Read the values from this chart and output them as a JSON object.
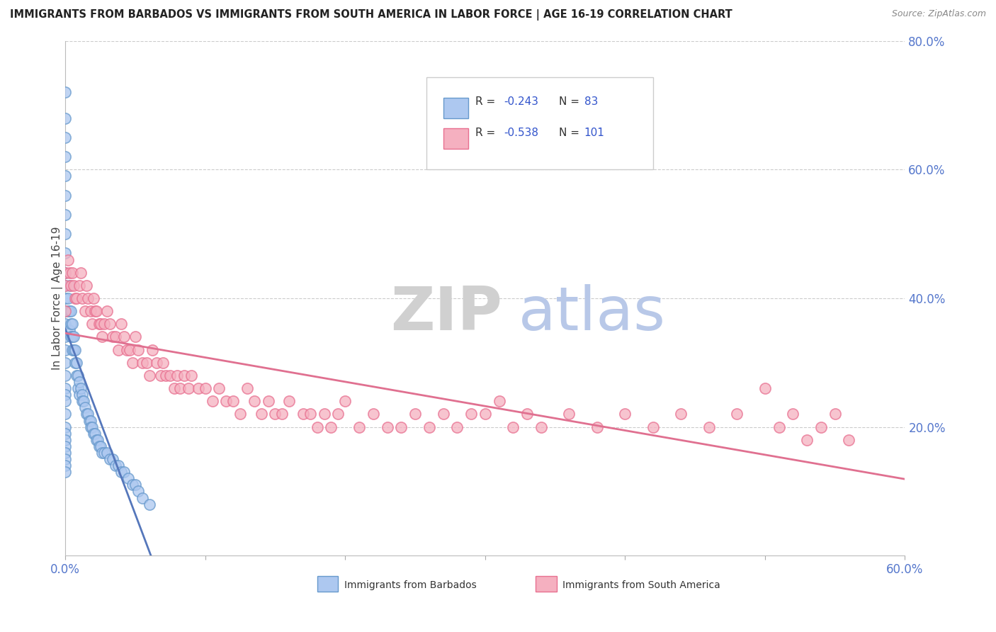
{
  "title": "IMMIGRANTS FROM BARBADOS VS IMMIGRANTS FROM SOUTH AMERICA IN LABOR FORCE | AGE 16-19 CORRELATION CHART",
  "source": "Source: ZipAtlas.com",
  "ylabel_label": "In Labor Force | Age 16-19",
  "legend_r1": "R = -0.243",
  "legend_n1": "N =  83",
  "legend_r2": "R = -0.538",
  "legend_n2": "N = 101",
  "color_barbados_fill": "#adc8f0",
  "color_barbados_edge": "#6699cc",
  "color_southam_fill": "#f5b0c0",
  "color_southam_edge": "#e87090",
  "color_blue_line": "#5577bb",
  "color_pink_line": "#e07090",
  "color_r_value": "#3355cc",
  "color_n_value": "#3355cc",
  "color_tick_label": "#5577cc",
  "xlim": [
    0.0,
    0.6
  ],
  "ylim": [
    0.0,
    0.8
  ],
  "barbados_x": [
    0.0,
    0.0,
    0.0,
    0.0,
    0.0,
    0.0,
    0.0,
    0.0,
    0.0,
    0.0,
    0.0,
    0.0,
    0.0,
    0.0,
    0.0,
    0.0,
    0.0,
    0.0,
    0.0,
    0.0,
    0.0,
    0.0,
    0.0,
    0.0,
    0.0,
    0.0,
    0.0,
    0.0,
    0.0,
    0.0,
    0.002,
    0.002,
    0.003,
    0.003,
    0.003,
    0.004,
    0.004,
    0.004,
    0.005,
    0.005,
    0.005,
    0.006,
    0.006,
    0.007,
    0.007,
    0.008,
    0.008,
    0.009,
    0.009,
    0.01,
    0.01,
    0.011,
    0.012,
    0.012,
    0.013,
    0.014,
    0.015,
    0.016,
    0.017,
    0.018,
    0.018,
    0.019,
    0.02,
    0.021,
    0.022,
    0.023,
    0.024,
    0.025,
    0.026,
    0.028,
    0.03,
    0.032,
    0.034,
    0.036,
    0.038,
    0.04,
    0.042,
    0.045,
    0.048,
    0.05,
    0.052,
    0.055,
    0.06
  ],
  "barbados_y": [
    0.72,
    0.68,
    0.65,
    0.62,
    0.59,
    0.56,
    0.53,
    0.5,
    0.47,
    0.44,
    0.42,
    0.4,
    0.38,
    0.36,
    0.34,
    0.32,
    0.3,
    0.28,
    0.26,
    0.25,
    0.24,
    0.22,
    0.2,
    0.19,
    0.18,
    0.17,
    0.16,
    0.15,
    0.14,
    0.13,
    0.4,
    0.38,
    0.42,
    0.38,
    0.35,
    0.38,
    0.36,
    0.34,
    0.36,
    0.34,
    0.32,
    0.34,
    0.32,
    0.32,
    0.3,
    0.3,
    0.28,
    0.28,
    0.26,
    0.27,
    0.25,
    0.26,
    0.25,
    0.24,
    0.24,
    0.23,
    0.22,
    0.22,
    0.21,
    0.21,
    0.2,
    0.2,
    0.19,
    0.19,
    0.18,
    0.18,
    0.17,
    0.17,
    0.16,
    0.16,
    0.16,
    0.15,
    0.15,
    0.14,
    0.14,
    0.13,
    0.13,
    0.12,
    0.11,
    0.11,
    0.1,
    0.09,
    0.08
  ],
  "southam_x": [
    0.0,
    0.0,
    0.0,
    0.002,
    0.003,
    0.004,
    0.005,
    0.006,
    0.007,
    0.008,
    0.01,
    0.011,
    0.012,
    0.014,
    0.015,
    0.016,
    0.018,
    0.019,
    0.02,
    0.021,
    0.022,
    0.024,
    0.025,
    0.026,
    0.028,
    0.03,
    0.032,
    0.034,
    0.036,
    0.038,
    0.04,
    0.042,
    0.044,
    0.046,
    0.048,
    0.05,
    0.052,
    0.055,
    0.058,
    0.06,
    0.062,
    0.065,
    0.068,
    0.07,
    0.072,
    0.075,
    0.078,
    0.08,
    0.082,
    0.085,
    0.088,
    0.09,
    0.095,
    0.1,
    0.105,
    0.11,
    0.115,
    0.12,
    0.125,
    0.13,
    0.135,
    0.14,
    0.145,
    0.15,
    0.155,
    0.16,
    0.17,
    0.175,
    0.18,
    0.185,
    0.19,
    0.195,
    0.2,
    0.21,
    0.22,
    0.23,
    0.24,
    0.25,
    0.26,
    0.27,
    0.28,
    0.29,
    0.3,
    0.31,
    0.32,
    0.33,
    0.34,
    0.36,
    0.38,
    0.4,
    0.42,
    0.44,
    0.46,
    0.48,
    0.5,
    0.51,
    0.52,
    0.53,
    0.54,
    0.55,
    0.56
  ],
  "southam_y": [
    0.44,
    0.42,
    0.38,
    0.46,
    0.44,
    0.42,
    0.44,
    0.42,
    0.4,
    0.4,
    0.42,
    0.44,
    0.4,
    0.38,
    0.42,
    0.4,
    0.38,
    0.36,
    0.4,
    0.38,
    0.38,
    0.36,
    0.36,
    0.34,
    0.36,
    0.38,
    0.36,
    0.34,
    0.34,
    0.32,
    0.36,
    0.34,
    0.32,
    0.32,
    0.3,
    0.34,
    0.32,
    0.3,
    0.3,
    0.28,
    0.32,
    0.3,
    0.28,
    0.3,
    0.28,
    0.28,
    0.26,
    0.28,
    0.26,
    0.28,
    0.26,
    0.28,
    0.26,
    0.26,
    0.24,
    0.26,
    0.24,
    0.24,
    0.22,
    0.26,
    0.24,
    0.22,
    0.24,
    0.22,
    0.22,
    0.24,
    0.22,
    0.22,
    0.2,
    0.22,
    0.2,
    0.22,
    0.24,
    0.2,
    0.22,
    0.2,
    0.2,
    0.22,
    0.2,
    0.22,
    0.2,
    0.22,
    0.22,
    0.24,
    0.2,
    0.22,
    0.2,
    0.22,
    0.2,
    0.22,
    0.2,
    0.22,
    0.2,
    0.22,
    0.26,
    0.2,
    0.22,
    0.18,
    0.2,
    0.22,
    0.18
  ],
  "yticks": [
    0.2,
    0.4,
    0.6,
    0.8
  ],
  "ytick_labels": [
    "20.0%",
    "40.0%",
    "60.0%",
    "80.0%"
  ],
  "xtick_left_label": "0.0%",
  "xtick_right_label": "60.0%",
  "bottom_legend_label1": "Immigrants from Barbados",
  "bottom_legend_label2": "Immigrants from South America"
}
